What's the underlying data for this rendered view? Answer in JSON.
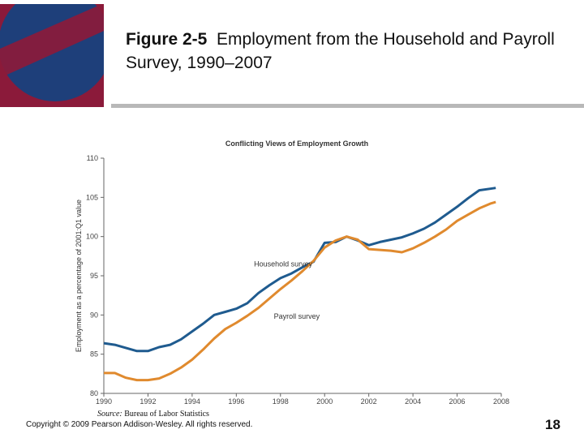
{
  "slide": {
    "title_bold": "Figure 2-5",
    "title_rest": "Employment from the Household and Payroll Survey, 1990–2007",
    "source_label": "Source:",
    "source_text": "Bureau of Labor Statistics",
    "copyright": "Copyright © 2009 Pearson Addison-Wesley. All rights reserved.",
    "page_number": "18",
    "colors": {
      "logo_red": "#8b1a3a",
      "logo_blue": "#1e3f7a",
      "rule": "#b8b8b8"
    }
  },
  "chart_data": {
    "type": "line",
    "title": "Conflicting Views of Employment Growth",
    "xlabel": "",
    "ylabel": "Employment as a percentage of 2001:Q1 value",
    "xlim": [
      1990,
      2008
    ],
    "ylim": [
      80,
      110
    ],
    "x_ticks": [
      1990,
      1992,
      1994,
      1996,
      1998,
      2000,
      2002,
      2004,
      2006,
      2008
    ],
    "y_ticks": [
      80,
      85,
      90,
      95,
      100,
      105,
      110
    ],
    "series": [
      {
        "name": "Household survey",
        "color": "#1f5b8f",
        "points": [
          [
            1990.0,
            86.4
          ],
          [
            1990.5,
            86.2
          ],
          [
            1991.0,
            85.8
          ],
          [
            1991.5,
            85.4
          ],
          [
            1992.0,
            85.4
          ],
          [
            1992.5,
            85.9
          ],
          [
            1993.0,
            86.2
          ],
          [
            1993.5,
            86.9
          ],
          [
            1994.0,
            87.9
          ],
          [
            1994.5,
            88.9
          ],
          [
            1995.0,
            90.0
          ],
          [
            1995.5,
            90.4
          ],
          [
            1996.0,
            90.8
          ],
          [
            1996.5,
            91.5
          ],
          [
            1997.0,
            92.8
          ],
          [
            1997.5,
            93.8
          ],
          [
            1998.0,
            94.7
          ],
          [
            1998.5,
            95.3
          ],
          [
            1999.0,
            96.1
          ],
          [
            1999.5,
            96.8
          ],
          [
            2000.0,
            99.2
          ],
          [
            2000.5,
            99.3
          ],
          [
            2001.0,
            100.0
          ],
          [
            2001.5,
            99.5
          ],
          [
            2002.0,
            98.9
          ],
          [
            2002.5,
            99.3
          ],
          [
            2003.0,
            99.6
          ],
          [
            2003.5,
            99.9
          ],
          [
            2004.0,
            100.4
          ],
          [
            2004.5,
            101.0
          ],
          [
            2005.0,
            101.8
          ],
          [
            2005.5,
            102.8
          ],
          [
            2006.0,
            103.8
          ],
          [
            2006.5,
            104.9
          ],
          [
            2007.0,
            105.9
          ],
          [
            2007.5,
            106.1
          ],
          [
            2007.75,
            106.2
          ]
        ]
      },
      {
        "name": "Payroll survey",
        "color": "#e08a2e",
        "points": [
          [
            1990.0,
            82.6
          ],
          [
            1990.5,
            82.6
          ],
          [
            1991.0,
            82.0
          ],
          [
            1991.5,
            81.7
          ],
          [
            1992.0,
            81.7
          ],
          [
            1992.5,
            81.9
          ],
          [
            1993.0,
            82.5
          ],
          [
            1993.5,
            83.3
          ],
          [
            1994.0,
            84.3
          ],
          [
            1994.5,
            85.6
          ],
          [
            1995.0,
            87.0
          ],
          [
            1995.5,
            88.2
          ],
          [
            1996.0,
            89.0
          ],
          [
            1996.5,
            89.9
          ],
          [
            1997.0,
            90.9
          ],
          [
            1997.5,
            92.1
          ],
          [
            1998.0,
            93.3
          ],
          [
            1998.5,
            94.4
          ],
          [
            1999.0,
            95.6
          ],
          [
            1999.5,
            96.9
          ],
          [
            2000.0,
            98.6
          ],
          [
            2000.5,
            99.5
          ],
          [
            2001.0,
            100.0
          ],
          [
            2001.5,
            99.6
          ],
          [
            2002.0,
            98.4
          ],
          [
            2002.5,
            98.3
          ],
          [
            2003.0,
            98.2
          ],
          [
            2003.5,
            98.0
          ],
          [
            2004.0,
            98.5
          ],
          [
            2004.5,
            99.2
          ],
          [
            2005.0,
            100.0
          ],
          [
            2005.5,
            100.9
          ],
          [
            2006.0,
            102.0
          ],
          [
            2006.5,
            102.8
          ],
          [
            2007.0,
            103.6
          ],
          [
            2007.5,
            104.2
          ],
          [
            2007.75,
            104.4
          ]
        ]
      }
    ],
    "annotations": [
      {
        "text": "Household survey",
        "x": 1996.8,
        "y": 96.2
      },
      {
        "text": "Payroll survey",
        "x": 1997.7,
        "y": 89.5
      }
    ],
    "grid": false
  }
}
